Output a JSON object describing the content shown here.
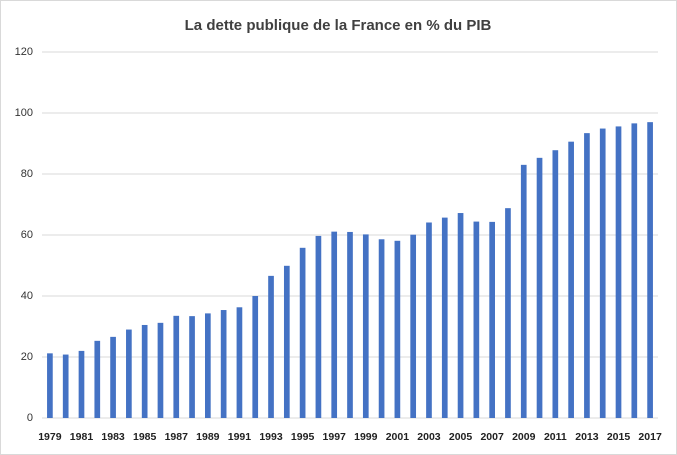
{
  "chart_data": {
    "type": "bar",
    "title": "La dette publique de la France en % du PIB",
    "categories": [
      "1979",
      null,
      "1981",
      null,
      "1983",
      null,
      "1985",
      null,
      "1987",
      null,
      "1989",
      null,
      "1991",
      null,
      "1993",
      null,
      "1995",
      null,
      "1997",
      null,
      "1999",
      null,
      "2001",
      null,
      "2003",
      null,
      "2005",
      null,
      "2007",
      null,
      "2009",
      null,
      "2011",
      null,
      "2013",
      null,
      "2015",
      null,
      "2017"
    ],
    "values": [
      21.2,
      20.8,
      22.0,
      25.3,
      26.6,
      29.0,
      30.5,
      31.2,
      33.5,
      33.4,
      34.3,
      35.4,
      36.3,
      40.0,
      46.6,
      49.9,
      55.8,
      59.7,
      61.1,
      61.0,
      60.2,
      58.6,
      58.1,
      60.1,
      64.1,
      65.7,
      67.2,
      64.4,
      64.3,
      68.8,
      83.0,
      85.3,
      87.8,
      90.6,
      93.4,
      94.9,
      95.6,
      96.6,
      97.0
    ],
    "color": "#4472c4",
    "ylim": [
      0,
      120
    ],
    "yticks": [
      0,
      20,
      40,
      60,
      80,
      100,
      120
    ],
    "grid": true
  }
}
